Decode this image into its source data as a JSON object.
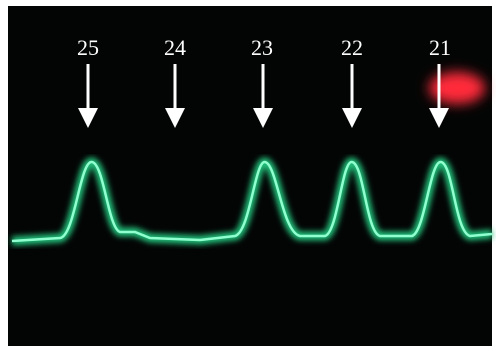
{
  "labels": [
    "25",
    "24",
    "23",
    "22",
    "21"
  ]
}
